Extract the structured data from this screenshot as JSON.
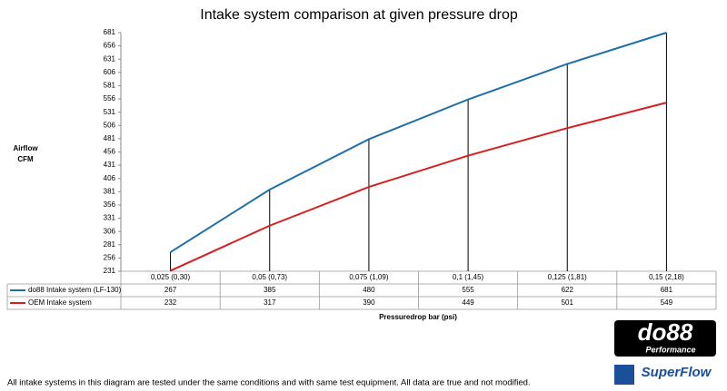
{
  "chart_data": {
    "type": "line",
    "title": "Intake system comparison at given pressure drop",
    "y_label_lines": [
      "Airflow",
      "CFM"
    ],
    "x_label": "Pressuredrop bar (psi)",
    "categories": [
      "0,025 (0,30)",
      "0,05 (0,73)",
      "0,075 (1,09)",
      "0,1 (1,45)",
      "0,125 (1,81)",
      "0,15 (2,18)"
    ],
    "series": [
      {
        "name": "do88 Intake system (LF-130)",
        "color": "#1f6fa8",
        "values": [
          267,
          385,
          480,
          555,
          622,
          681
        ]
      },
      {
        "name": "OEM Intake system",
        "color": "#d42020",
        "values": [
          232,
          317,
          390,
          449,
          501,
          549
        ]
      }
    ],
    "ylim": [
      231,
      681
    ],
    "yticks": [
      231,
      256,
      281,
      306,
      331,
      356,
      381,
      406,
      431,
      456,
      481,
      506,
      531,
      556,
      581,
      606,
      631,
      656,
      681
    ],
    "drop_lines": true,
    "footnote": "All intake systems in this diagram are tested under the same conditions and with same test equipment. All data are true and not modified.",
    "logos": [
      "do88",
      "Performance",
      "SuperFlow"
    ]
  }
}
